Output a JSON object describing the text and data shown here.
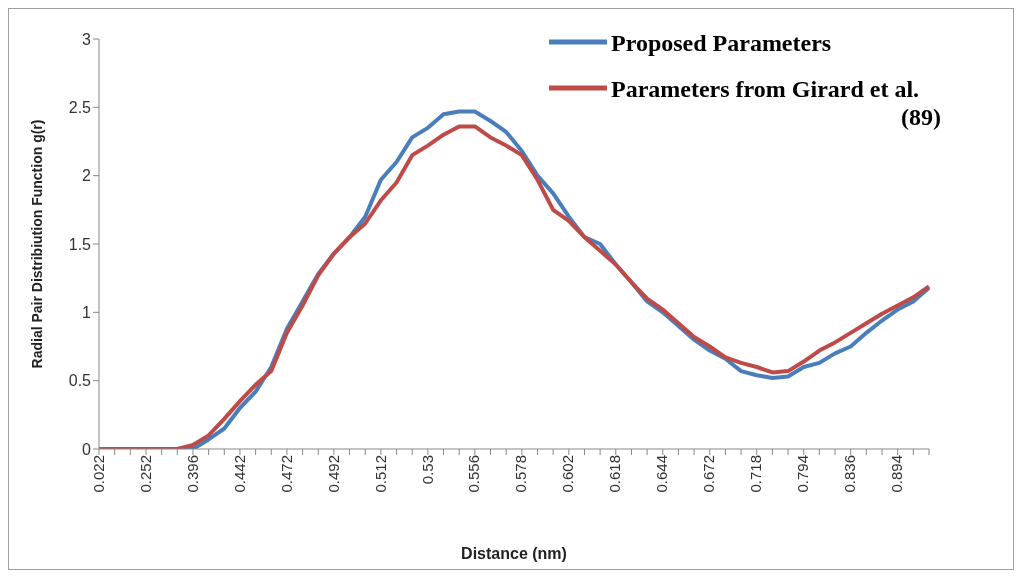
{
  "chart_data": {
    "type": "line",
    "xlabel": "Distance (nm)",
    "ylabel": "Radial Pair Distribiution Function g(r)",
    "categories": [
      "0.022",
      null,
      null,
      "0.252",
      null,
      null,
      "0.396",
      null,
      null,
      "0.442",
      null,
      null,
      "0.472",
      null,
      null,
      "0.492",
      null,
      null,
      "0.512",
      null,
      null,
      "0.53",
      null,
      null,
      "0.556",
      null,
      null,
      "0.578",
      null,
      null,
      "0.602",
      null,
      null,
      "0.618",
      null,
      null,
      "0.644",
      null,
      null,
      "0.672",
      null,
      null,
      "0.718",
      null,
      null,
      "0.794",
      null,
      null,
      "0.836",
      null,
      null,
      "0.894",
      null,
      null
    ],
    "series": [
      {
        "name": "Proposed Parameters",
        "color": "#4a7ebb",
        "values": [
          null,
          null,
          null,
          null,
          0,
          0,
          0,
          0.07,
          0.15,
          0.3,
          0.42,
          0.6,
          0.88,
          1.08,
          1.28,
          1.43,
          1.55,
          1.7,
          1.97,
          2.1,
          2.28,
          2.35,
          2.45,
          2.47,
          2.47,
          2.4,
          2.32,
          2.18,
          2.0,
          1.87,
          1.7,
          1.55,
          1.5,
          1.35,
          1.22,
          1.08,
          1.0,
          0.9,
          0.8,
          0.72,
          0.66,
          0.57,
          0.54,
          0.52,
          0.53,
          0.6,
          0.63,
          0.7,
          0.75,
          0.85,
          0.94,
          1.02,
          1.08,
          1.18
        ]
      },
      {
        "name": "Parameters from Girard et al. (89)",
        "color": "#be4b48",
        "values": [
          0,
          0,
          0,
          0,
          0,
          0,
          0.03,
          0.1,
          0.22,
          0.35,
          0.47,
          0.57,
          0.85,
          1.05,
          1.27,
          1.43,
          1.55,
          1.65,
          1.82,
          1.95,
          2.15,
          2.22,
          2.3,
          2.36,
          2.36,
          2.28,
          2.22,
          2.15,
          1.97,
          1.75,
          1.67,
          1.55,
          1.45,
          1.35,
          1.22,
          1.1,
          1.02,
          0.92,
          0.82,
          0.75,
          0.67,
          0.63,
          0.6,
          0.56,
          0.57,
          0.64,
          0.72,
          0.78,
          0.85,
          0.92,
          0.99,
          1.05,
          1.11,
          1.19
        ]
      }
    ],
    "ylim": [
      0,
      3
    ],
    "yticks": [
      0,
      0.5,
      1,
      1.5,
      2,
      2.5,
      3
    ],
    "grid": false,
    "legend": "top right",
    "marker": "none",
    "line_style": "solid"
  }
}
